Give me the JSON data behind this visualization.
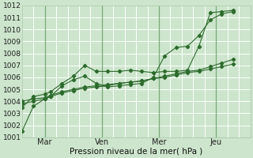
{
  "xlabel": "Pression niveau de la mer( hPa )",
  "bg_color": "#cce5cc",
  "grid_color": "#ffffff",
  "line_color": "#2d6a2d",
  "ylim": [
    1001,
    1012
  ],
  "yticks": [
    1001,
    1002,
    1003,
    1004,
    1005,
    1006,
    1007,
    1008,
    1009,
    1010,
    1011,
    1012
  ],
  "xlim": [
    0,
    40
  ],
  "xtick_positions": [
    4,
    14,
    24,
    34
  ],
  "xtick_labels": [
    "Mar",
    "Ven",
    "Mer",
    "Jeu"
  ],
  "vlines": [
    4,
    14,
    24,
    34
  ],
  "series": [
    [
      1001.5,
      1003.6,
      1004.2,
      1004.4,
      1005.3,
      1005.8,
      1006.1,
      1005.5,
      1005.2,
      1005.3,
      1005.4,
      1005.5,
      1006.0,
      1007.8,
      1008.5,
      1008.6,
      1009.5,
      1010.8,
      1011.3,
      1011.5
    ],
    [
      1003.5,
      1004.4,
      1004.6,
      1004.8,
      1005.5,
      1006.1,
      1007.0,
      1006.5,
      1006.5,
      1006.5,
      1006.6,
      1006.5,
      1006.4,
      1006.5,
      1006.5,
      1006.6,
      1008.6,
      1011.4,
      1011.5,
      1011.6
    ],
    [
      1004.0,
      1004.2,
      1004.3,
      1004.5,
      1004.8,
      1005.0,
      1005.2,
      1005.3,
      1005.4,
      1005.5,
      1005.6,
      1005.7,
      1005.9,
      1006.1,
      1006.3,
      1006.5,
      1006.6,
      1006.9,
      1007.2,
      1007.5
    ],
    [
      1003.8,
      1004.0,
      1004.2,
      1004.4,
      1004.7,
      1004.9,
      1005.1,
      1005.2,
      1005.3,
      1005.5,
      1005.6,
      1005.7,
      1005.9,
      1006.0,
      1006.2,
      1006.4,
      1006.5,
      1006.7,
      1006.9,
      1007.1
    ]
  ],
  "series_x": [
    0,
    2,
    4,
    5,
    7,
    9,
    11,
    13,
    15,
    17,
    19,
    21,
    23,
    25,
    27,
    29,
    31,
    33,
    35,
    37
  ]
}
